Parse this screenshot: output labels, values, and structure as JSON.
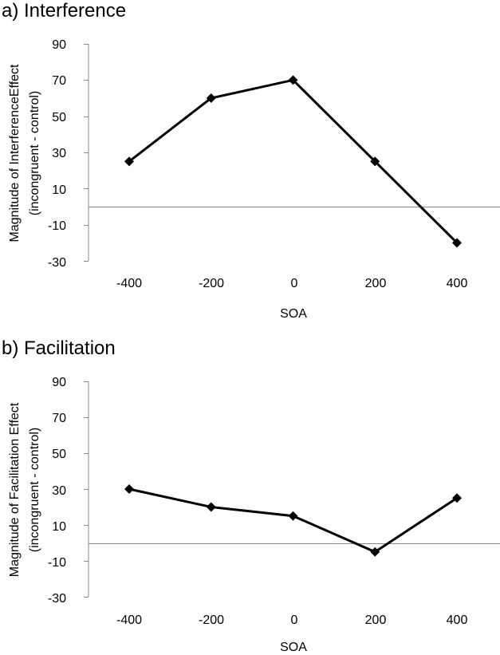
{
  "chart_data": [
    {
      "type": "line",
      "title": "a) Interference",
      "xlabel": "SOA",
      "ylabel_line1": "Magnitude of InterferenceEffect",
      "ylabel_line2": "(incongruent - control)",
      "categories": [
        "-400",
        "-200",
        "0",
        "200",
        "400"
      ],
      "values": [
        25,
        60,
        70,
        25,
        -20
      ],
      "ylim": [
        -30,
        90
      ],
      "yticks": [
        90,
        70,
        50,
        30,
        10,
        -10,
        -30
      ],
      "ytick_labels": [
        "90",
        "70",
        "50",
        "30",
        "10",
        "-10",
        "-30"
      ],
      "grid": false,
      "zero_line": true,
      "line_color": "#000000",
      "marker": "diamond",
      "axis_color": "#888888"
    },
    {
      "type": "line",
      "title": "b) Facilitation",
      "xlabel": "SOA",
      "ylabel_line1": "Magnitude of Facilitation Effect",
      "ylabel_line2": "(incongruent - control)",
      "categories": [
        "-400",
        "-200",
        "0",
        "200",
        "400"
      ],
      "values": [
        30,
        20,
        15,
        -5,
        25
      ],
      "ylim": [
        -30,
        90
      ],
      "yticks": [
        90,
        70,
        50,
        30,
        10,
        -10,
        -30
      ],
      "ytick_labels": [
        "90",
        "70",
        "50",
        "30",
        "10",
        "-10",
        "-30"
      ],
      "grid": false,
      "zero_line": true,
      "line_color": "#000000",
      "marker": "diamond",
      "axis_color": "#888888"
    }
  ]
}
